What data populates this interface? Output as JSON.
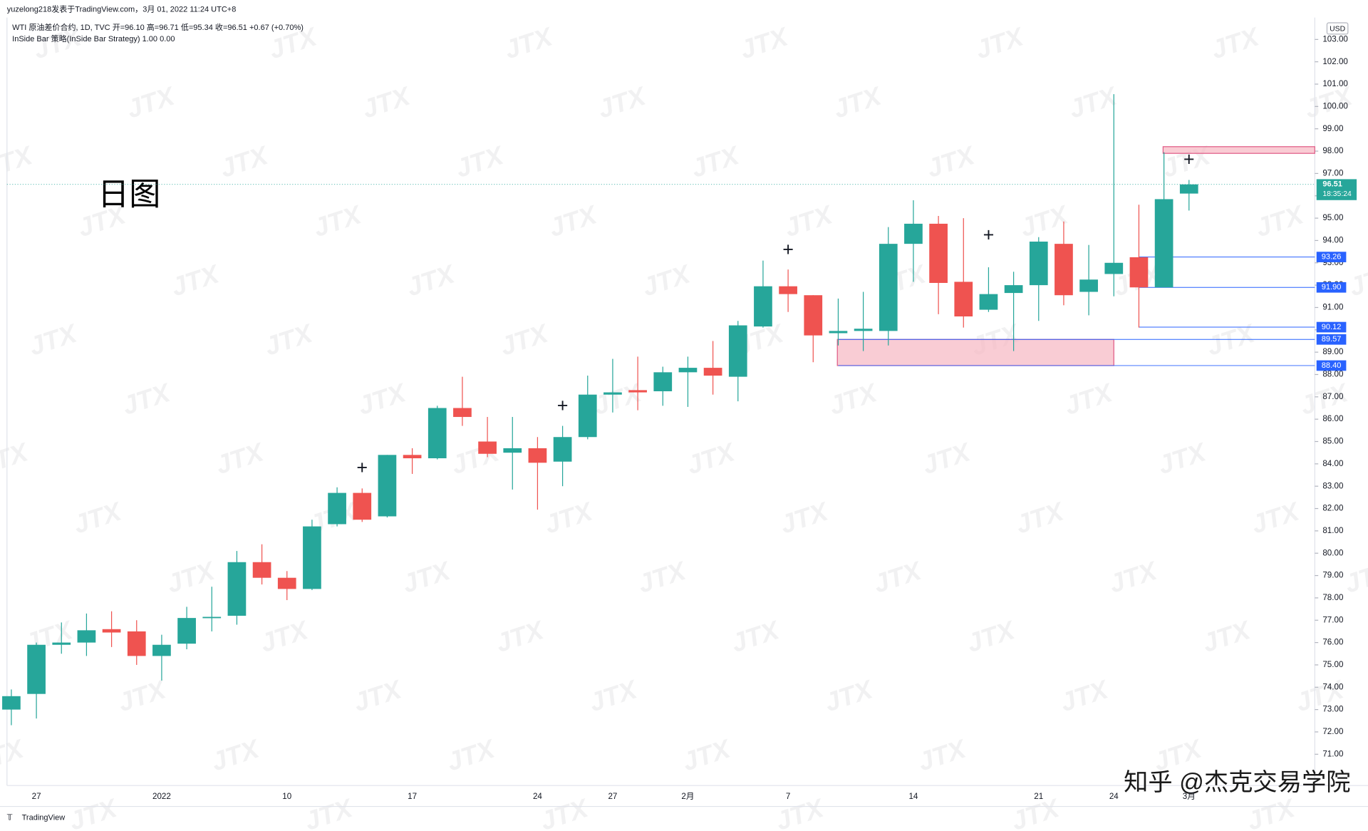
{
  "header": {
    "publisher": "yuzelong218发表于TradingView.com，3月 01, 2022 11:24 UTC+8",
    "symbol_legend": "WTI 原油差价合约, 1D, TVC  开=96.10 高=96.71 低=95.34 收=96.51 +0.67 (+0.70%)",
    "strategy_legend": "InSide Bar 策略(InSide Bar Strategy)  1.00  0.00"
  },
  "annotation": "日图",
  "watermark": "JTX",
  "footer": {
    "brand": "TradingView",
    "credit": "知乎 @杰克交易学院"
  },
  "chart_data": {
    "type": "candlestick",
    "currency": "USD",
    "categories": [
      null,
      "27",
      null,
      null,
      null,
      null,
      "2022",
      null,
      null,
      null,
      null,
      "10",
      null,
      null,
      null,
      null,
      "17",
      null,
      null,
      null,
      null,
      "24",
      null,
      null,
      "27",
      null,
      null,
      "2月",
      null,
      null,
      null,
      "7",
      null,
      null,
      null,
      null,
      "14",
      null,
      null,
      null,
      null,
      "21",
      null,
      null,
      "24",
      null,
      null,
      "3月"
    ],
    "series": {
      "up_color": "#26a69a",
      "down_color": "#ef5350",
      "open": [
        73.0,
        73.7,
        75.9,
        76.0,
        76.6,
        76.5,
        75.4,
        75.95,
        77.1,
        77.2,
        79.6,
        78.9,
        78.4,
        81.3,
        82.7,
        81.65,
        84.4,
        84.25,
        86.5,
        85.0,
        84.5,
        84.7,
        84.1,
        85.2,
        87.1,
        87.3,
        87.25,
        88.1,
        88.3,
        87.9,
        90.15,
        91.95,
        91.55,
        89.85,
        89.95,
        89.95,
        93.85,
        94.75,
        92.15,
        90.9,
        91.65,
        92.0,
        93.85,
        91.7,
        92.5,
        93.25,
        91.9,
        96.1
      ],
      "high": [
        73.9,
        76.0,
        76.9,
        77.3,
        77.4,
        77.0,
        76.35,
        77.6,
        78.5,
        80.1,
        80.4,
        79.2,
        81.5,
        82.95,
        82.9,
        84.4,
        84.7,
        86.6,
        87.9,
        86.1,
        86.1,
        85.2,
        85.7,
        87.95,
        88.7,
        88.8,
        88.35,
        88.8,
        89.5,
        90.4,
        93.1,
        92.7,
        91.55,
        91.4,
        91.7,
        94.6,
        95.8,
        95.1,
        95.0,
        92.8,
        92.6,
        94.15,
        94.85,
        93.8,
        100.55,
        95.6,
        97.95,
        96.71
      ],
      "low": [
        72.3,
        72.6,
        75.5,
        75.4,
        75.8,
        75.0,
        74.3,
        75.7,
        76.5,
        76.8,
        78.6,
        77.9,
        78.35,
        81.2,
        81.4,
        81.6,
        83.55,
        84.2,
        85.7,
        84.3,
        82.85,
        81.95,
        83.0,
        85.1,
        86.3,
        86.4,
        86.6,
        86.55,
        87.1,
        86.8,
        90.1,
        90.8,
        88.55,
        89.3,
        89.05,
        89.3,
        92.15,
        90.7,
        90.1,
        90.8,
        89.05,
        90.4,
        91.1,
        90.65,
        91.5,
        90.1,
        91.9,
        95.34
      ],
      "close": [
        73.6,
        75.9,
        76.0,
        76.55,
        76.45,
        75.4,
        75.9,
        77.1,
        77.15,
        79.6,
        78.9,
        78.4,
        81.2,
        82.7,
        81.5,
        84.4,
        84.25,
        86.5,
        86.1,
        84.45,
        84.7,
        84.05,
        85.2,
        87.1,
        87.2,
        87.2,
        88.1,
        88.3,
        87.95,
        90.2,
        91.95,
        91.6,
        89.75,
        89.95,
        90.05,
        93.85,
        94.75,
        92.1,
        90.6,
        91.6,
        92.0,
        93.95,
        91.55,
        92.25,
        93.0,
        91.9,
        95.85,
        96.51
      ]
    },
    "ylim": [
      69.6,
      103.98
    ],
    "yticks": [
      {
        "value": 71,
        "label": "71.00"
      },
      {
        "value": 72,
        "label": "72.00"
      },
      {
        "value": 73,
        "label": "73.00"
      },
      {
        "value": 74,
        "label": "74.00"
      },
      {
        "value": 75,
        "label": "75.00"
      },
      {
        "value": 76,
        "label": "76.00"
      },
      {
        "value": 77,
        "label": "77.00"
      },
      {
        "value": 78,
        "label": "78.00"
      },
      {
        "value": 79,
        "label": "79.00"
      },
      {
        "value": 80,
        "label": "80.00"
      },
      {
        "value": 81,
        "label": "81.00"
      },
      {
        "value": 82,
        "label": "82.00"
      },
      {
        "value": 83,
        "label": "83.00"
      },
      {
        "value": 84,
        "label": "84.00"
      },
      {
        "value": 85,
        "label": "85.00"
      },
      {
        "value": 86,
        "label": "86.00"
      },
      {
        "value": 87,
        "label": "87.00"
      },
      {
        "value": 88,
        "label": "88.00"
      },
      {
        "value": 89,
        "label": "89.00"
      },
      {
        "value": 90,
        "label": "90.00"
      },
      {
        "value": 91,
        "label": "91.00"
      },
      {
        "value": 92,
        "label": "92.00"
      },
      {
        "value": 93,
        "label": "93.00"
      },
      {
        "value": 94,
        "label": "94.00"
      },
      {
        "value": 95,
        "label": "95.00"
      },
      {
        "value": 96,
        "label": "96.00"
      },
      {
        "value": 97,
        "label": "97.00"
      },
      {
        "value": 98,
        "label": "98.00"
      },
      {
        "value": 99,
        "label": "99.00"
      },
      {
        "value": 100,
        "label": "100.00"
      },
      {
        "value": 101,
        "label": "101.00"
      },
      {
        "value": 102,
        "label": "102.00"
      },
      {
        "value": 103,
        "label": "103.00"
      }
    ],
    "last_price": {
      "value": 96.51,
      "label": "96.51",
      "countdown": "18:35:24",
      "color": "#26a69a"
    },
    "levels": [
      {
        "value": 93.26,
        "label": "93.26",
        "from": 45
      },
      {
        "value": 91.9,
        "label": "91.90",
        "from": 45
      },
      {
        "value": 90.12,
        "label": "90.12",
        "from": 45
      },
      {
        "value": 89.57,
        "label": "89.57",
        "from": 33
      },
      {
        "value": 88.4,
        "label": "88.40",
        "from": 33
      }
    ],
    "level_color": "#2962ff",
    "zones": [
      {
        "top": 98.2,
        "bottom": 97.9,
        "from": 46
      },
      {
        "top": 89.57,
        "bottom": 88.4,
        "from": 33,
        "to": 44
      }
    ],
    "zone_color": "#f7b6c2",
    "markers": [
      {
        "index": 14,
        "price": 83.77,
        "label": "+"
      },
      {
        "index": 22,
        "price": 86.55,
        "label": "+"
      },
      {
        "index": 31,
        "price": 93.54,
        "label": "+"
      },
      {
        "index": 39,
        "price": 94.2,
        "label": "+"
      },
      {
        "index": 47,
        "price": 97.57,
        "label": "+"
      }
    ]
  }
}
